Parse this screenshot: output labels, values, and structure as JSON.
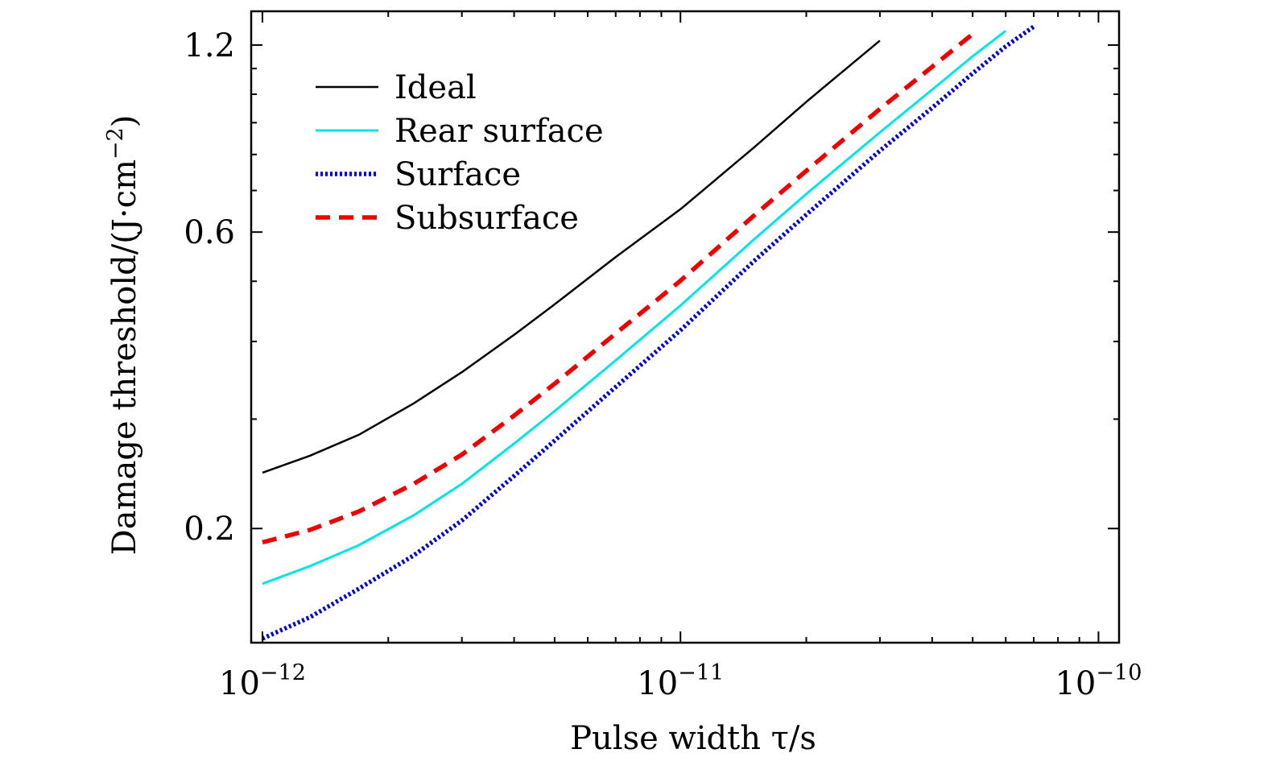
{
  "chart_data": {
    "type": "line",
    "title": "",
    "xlabel": "Pulse width τ/s",
    "ylabel": "Damage threshold/(J·cm⁻²)",
    "ylabel_parts": {
      "main": "Damage threshold/(J·cm",
      "exp": "−2",
      "close": ")"
    },
    "xscale": "log",
    "yscale": "log",
    "xlim": [
      9.4e-13,
      1.12e-10
    ],
    "ylim": [
      0.131,
      1.36
    ],
    "grid": false,
    "legend_position": "top-left",
    "x_ticks": [
      {
        "value": 1e-12,
        "base": "10",
        "exp": "−12"
      },
      {
        "value": 1e-11,
        "base": "10",
        "exp": "−11"
      },
      {
        "value": 1e-10,
        "base": "10",
        "exp": "−10"
      }
    ],
    "y_ticks": [
      {
        "value": 0.2,
        "label": "0.2"
      },
      {
        "value": 0.6,
        "label": "0.6"
      },
      {
        "value": 1.2,
        "label": "1.2"
      }
    ],
    "y_minor_ticks": [
      0.3,
      0.4,
      0.5,
      0.7,
      0.8,
      0.9,
      1.0,
      1.1
    ],
    "x": [
      1e-12,
      1.3e-12,
      1.7e-12,
      2.3e-12,
      3e-12,
      4e-12,
      5e-12,
      7e-12,
      1e-11,
      1.5e-11,
      2e-11,
      3e-11,
      4e-11,
      5e-11,
      6e-11,
      7e-11
    ],
    "series": [
      {
        "name": "Ideal",
        "color": "#000000",
        "style": "solid",
        "values": [
          0.246,
          0.262,
          0.283,
          0.318,
          0.357,
          0.41,
          0.459,
          0.547,
          0.653,
          0.821,
          0.972,
          1.22,
          null,
          null,
          null,
          null
        ]
      },
      {
        "name": "Rear surface",
        "color": "#00e5e5",
        "style": "solid",
        "values": [
          0.163,
          0.174,
          0.188,
          0.21,
          0.236,
          0.274,
          0.309,
          0.373,
          0.457,
          0.584,
          0.691,
          0.868,
          1.017,
          1.151,
          1.265,
          null
        ]
      },
      {
        "name": "Surface",
        "color": "#0000cc",
        "style": "dotted",
        "values": [
          0.133,
          0.144,
          0.16,
          0.181,
          0.206,
          0.243,
          0.277,
          0.338,
          0.417,
          0.539,
          0.64,
          0.811,
          0.951,
          1.08,
          1.194,
          1.285
        ]
      },
      {
        "name": "Subsurface",
        "color": "#ee0000",
        "style": "dashed",
        "values": [
          0.19,
          0.199,
          0.213,
          0.236,
          0.263,
          0.304,
          0.342,
          0.412,
          0.501,
          0.638,
          0.753,
          0.947,
          1.107,
          1.25,
          null,
          null
        ]
      }
    ]
  }
}
